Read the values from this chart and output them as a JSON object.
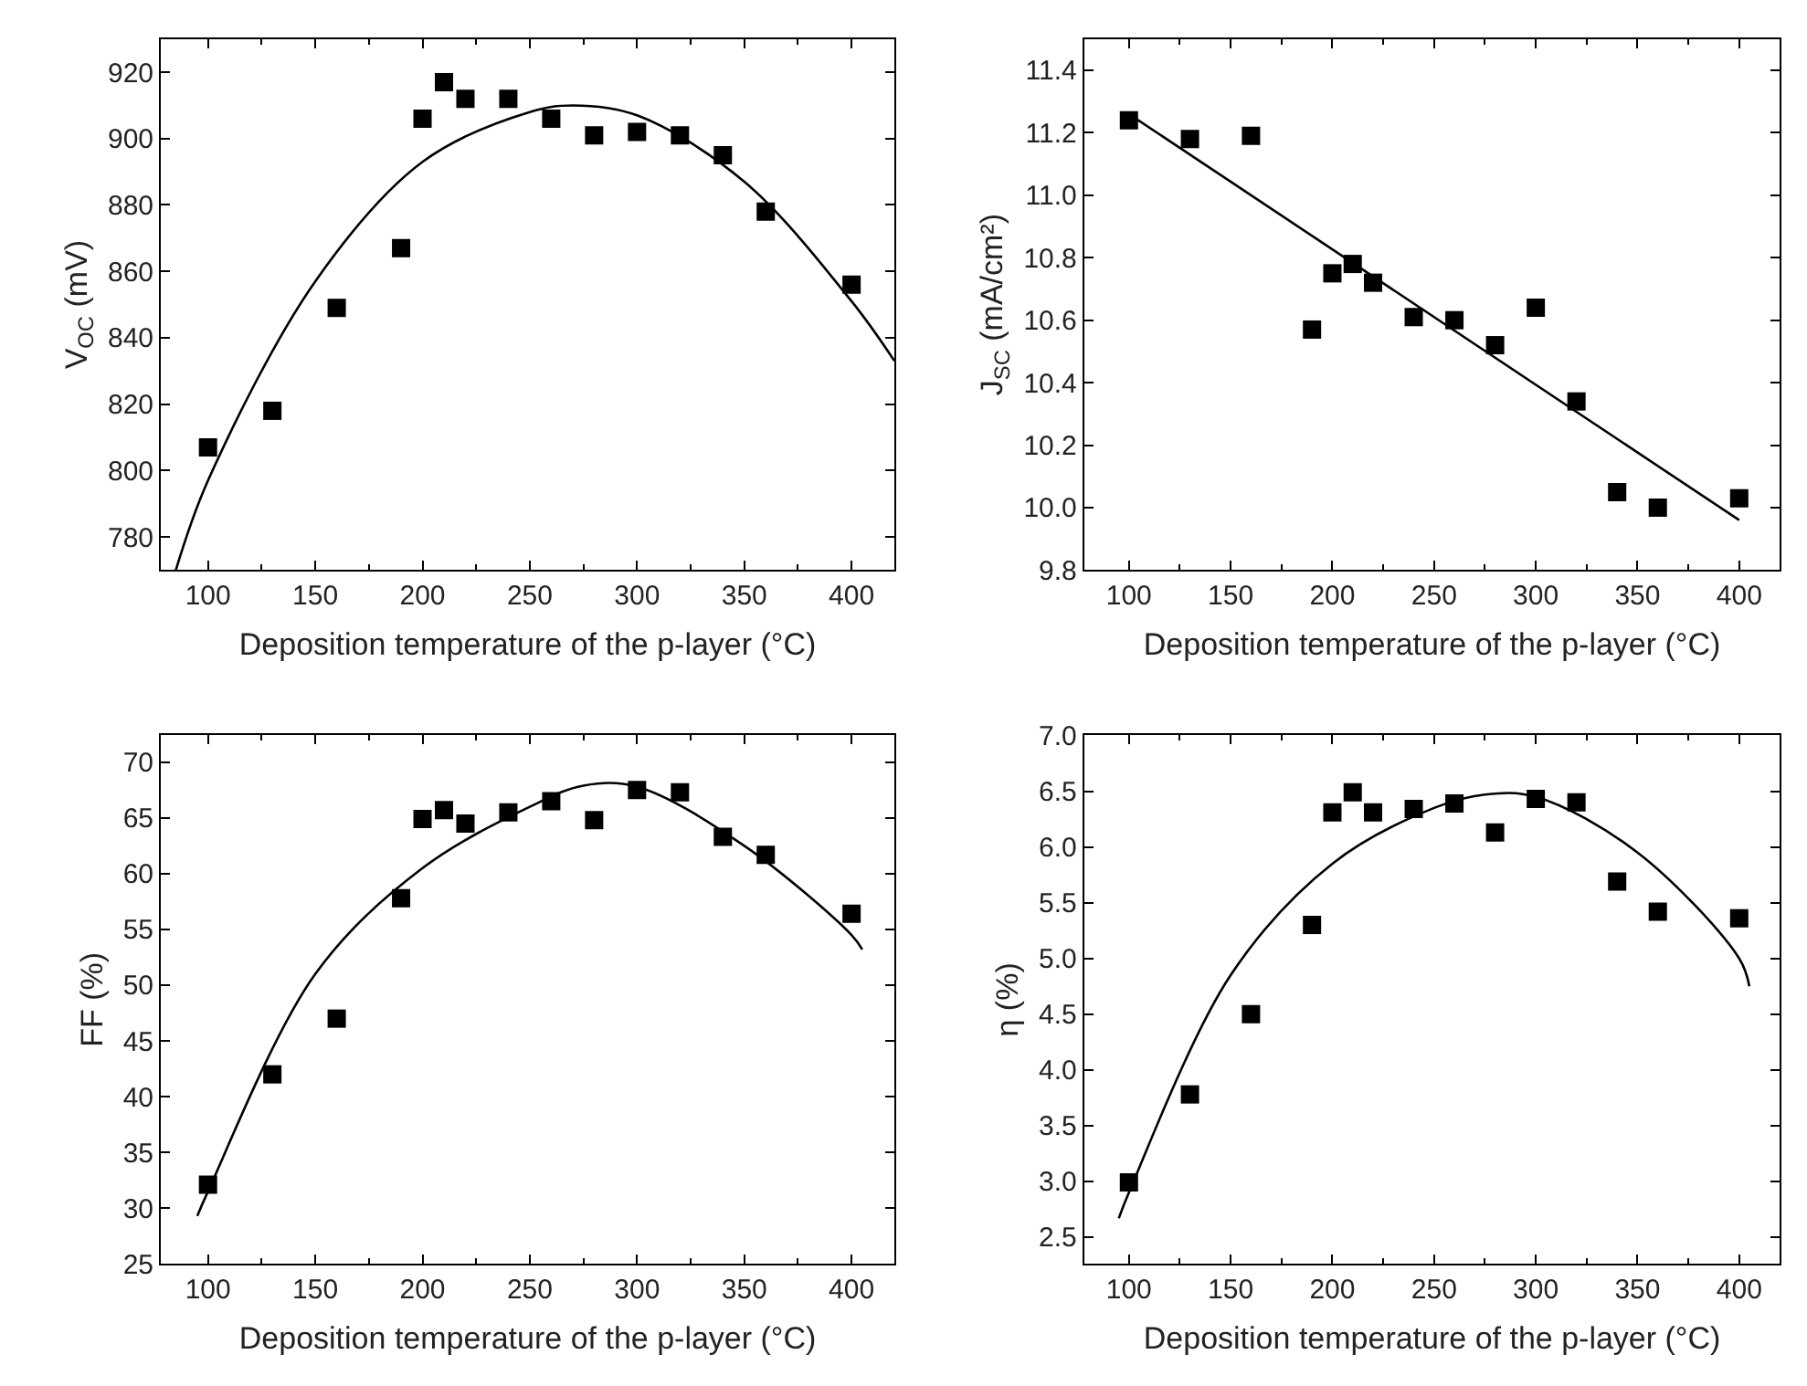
{
  "chart_data": [
    {
      "type": "scatter",
      "xlabel": "Deposition temperature of the p-layer (°C)",
      "ylabel": "V$_{OC}$ (mV)",
      "x": [
        100,
        130,
        160,
        190,
        200,
        210,
        220,
        240,
        260,
        280,
        300,
        320,
        340,
        360,
        400
      ],
      "xlim": [
        78,
        420
      ],
      "xticks": [
        100,
        150,
        200,
        250,
        300,
        350,
        400
      ],
      "ylim": [
        770,
        930
      ],
      "yticks": [
        780,
        800,
        820,
        840,
        860,
        880,
        900,
        920
      ],
      "marker": "square",
      "series": [
        {
          "color": "#000000",
          "values": [
            807,
            818,
            849,
            867,
            906,
            917,
            912,
            912,
            906,
            901,
            902,
            901,
            895,
            878,
            856
          ]
        },
        {
          "type": "line",
          "color": "#000000",
          "line_style": "solid",
          "marker": "none",
          "x": [
            85,
            100,
            150,
            200,
            250,
            270,
            300,
            350,
            400,
            420
          ],
          "values": [
            770,
            797,
            857,
            893,
            908,
            910,
            907,
            887,
            851,
            833
          ]
        }
      ]
    },
    {
      "type": "scatter",
      "xlabel": "Deposition temperature of the p-layer (°C)",
      "ylabel": "J$_{SC}$ (mA/cm²)",
      "x": [
        100,
        130,
        160,
        190,
        200,
        210,
        220,
        240,
        260,
        280,
        300,
        320,
        340,
        360,
        400
      ],
      "xlim": [
        78,
        420
      ],
      "xticks": [
        100,
        150,
        200,
        250,
        300,
        350,
        400
      ],
      "ylim": [
        9.8,
        11.5
      ],
      "yticks": [
        {
          "value": 9.8,
          "label": "9.8"
        },
        {
          "value": 10,
          "label": "10.0"
        },
        {
          "value": 10.2,
          "label": "10.2"
        },
        {
          "value": 10.4,
          "label": "10.4"
        },
        {
          "value": 10.6,
          "label": "10.6"
        },
        {
          "value": 10.8,
          "label": "10.8"
        },
        {
          "value": 11,
          "label": "11.0"
        },
        {
          "value": 11.2,
          "label": "11.2"
        },
        {
          "value": 11.4,
          "label": "11.4"
        }
      ],
      "marker": "square",
      "series": [
        {
          "color": "#000000",
          "values": [
            11.24,
            11.18,
            11.19,
            10.57,
            10.75,
            10.78,
            10.72,
            10.61,
            10.6,
            10.52,
            10.64,
            10.34,
            10.05,
            10.0,
            10.03
          ]
        },
        {
          "type": "line",
          "color": "#000000",
          "line_style": "solid",
          "marker": "none",
          "x": [
            100,
            400
          ],
          "values": [
            11.26,
            9.96
          ]
        }
      ]
    },
    {
      "type": "scatter",
      "xlabel": "Deposition temperature of the p-layer (°C)",
      "ylabel": "FF (%)",
      "x": [
        100,
        130,
        160,
        190,
        200,
        210,
        220,
        240,
        260,
        280,
        300,
        320,
        340,
        360,
        400
      ],
      "xlim": [
        78,
        420
      ],
      "xticks": [
        100,
        150,
        200,
        250,
        300,
        350,
        400
      ],
      "ylim": [
        25,
        72.4
      ],
      "yticks": [
        25,
        30,
        35,
        40,
        45,
        50,
        55,
        60,
        65,
        70
      ],
      "marker": "square",
      "series": [
        {
          "color": "#000000",
          "values": [
            32.1,
            42,
            47,
            57.8,
            64.9,
            65.7,
            64.5,
            65.5,
            66.5,
            64.8,
            67.5,
            67.3,
            63.3,
            61.7,
            56.4
          ]
        },
        {
          "type": "line",
          "color": "#000000",
          "line_style": "solid",
          "marker": "none",
          "x": [
            95,
            100,
            150,
            200,
            250,
            275,
            300,
            350,
            400,
            405
          ],
          "values": [
            29.3,
            31.5,
            51,
            60.5,
            66,
            67.9,
            67.8,
            62.5,
            54.5,
            53.2
          ]
        }
      ]
    },
    {
      "type": "scatter",
      "xlabel": "Deposition temperature of the p-layer (°C)",
      "ylabel": "η (%)",
      "x": [
        100,
        130,
        160,
        190,
        200,
        210,
        220,
        240,
        260,
        280,
        300,
        320,
        340,
        360,
        400
      ],
      "xlim": [
        78,
        420
      ],
      "xticks": [
        100,
        150,
        200,
        250,
        300,
        350,
        400
      ],
      "ylim": [
        2.26,
        7.0
      ],
      "yticks": [
        2.5,
        {
          "value": 3,
          "label": "3.0"
        },
        3.5,
        {
          "value": 4,
          "label": "4.0"
        },
        4.5,
        {
          "value": 5,
          "label": "5.0"
        },
        5.5,
        {
          "value": 6,
          "label": "6.0"
        },
        6.5,
        {
          "value": 7,
          "label": "7.0"
        }
      ],
      "marker": "square",
      "series": [
        {
          "color": "#000000",
          "values": [
            2.99,
            3.78,
            4.5,
            5.3,
            6.31,
            6.49,
            6.31,
            6.34,
            6.39,
            6.13,
            6.43,
            6.4,
            5.69,
            5.42,
            5.36
          ]
        },
        {
          "type": "line",
          "color": "#000000",
          "line_style": "solid",
          "marker": "none",
          "x": [
            95,
            100,
            150,
            200,
            250,
            275,
            300,
            350,
            400,
            405
          ],
          "values": [
            2.67,
            2.9,
            4.85,
            5.85,
            6.35,
            6.47,
            6.45,
            5.95,
            5.0,
            4.75
          ]
        }
      ]
    }
  ]
}
